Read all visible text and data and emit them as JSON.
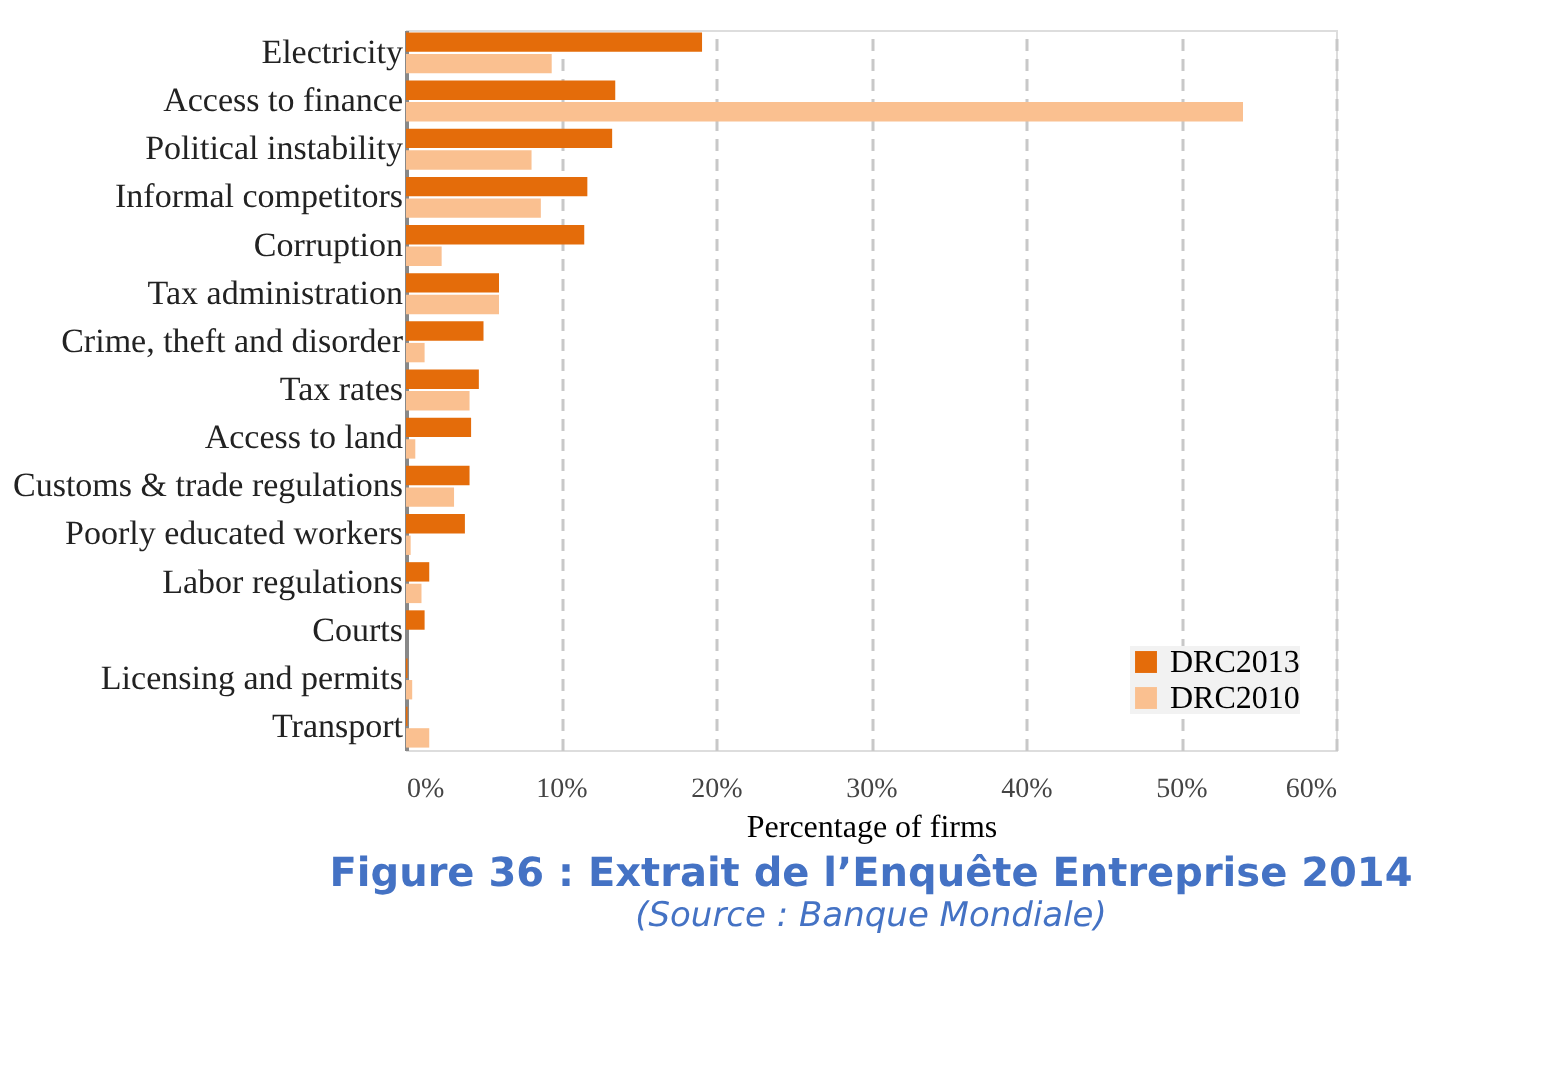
{
  "chart_data": {
    "type": "bar",
    "orientation": "horizontal",
    "title": "Figure 36 : Extrait de l’Enquête Entreprise 2014",
    "subtitle": "(Source : Banque Mondiale)",
    "xlabel": "Percentage  of firms",
    "categories": [
      "Electricity",
      "Access to finance",
      "Political instability",
      "Informal competitors",
      "Corruption",
      "Tax administration",
      "Crime, theft and disorder",
      "Tax rates",
      "Access to land",
      "Customs & trade regulations",
      "Poorly educated workers",
      "Labor regulations",
      "Courts",
      "Licensing and permits",
      "Transport"
    ],
    "series": [
      {
        "name": "DRC2013",
        "color": "#e46c0a",
        "values": [
          19.1,
          13.5,
          13.3,
          11.7,
          11.5,
          6.0,
          5.0,
          4.7,
          4.2,
          4.1,
          3.8,
          1.5,
          1.2,
          0.1,
          0.1
        ]
      },
      {
        "name": "DRC2010",
        "color": "#fac090",
        "values": [
          9.4,
          54.0,
          8.1,
          8.7,
          2.3,
          6.0,
          1.2,
          4.1,
          0.6,
          3.1,
          0.3,
          1.0,
          0,
          0.4,
          1.5
        ]
      }
    ],
    "xlim": [
      0,
      60
    ],
    "xticks": [
      {
        "value": 0,
        "label": "0%"
      },
      {
        "value": 10,
        "label": "10%"
      },
      {
        "value": 20,
        "label": "20%"
      },
      {
        "value": 30,
        "label": "30%"
      },
      {
        "value": 40,
        "label": "40%"
      },
      {
        "value": 50,
        "label": "50%"
      },
      {
        "value": 60,
        "label": "60%"
      }
    ],
    "grid": "x",
    "legend": "bottom right"
  }
}
